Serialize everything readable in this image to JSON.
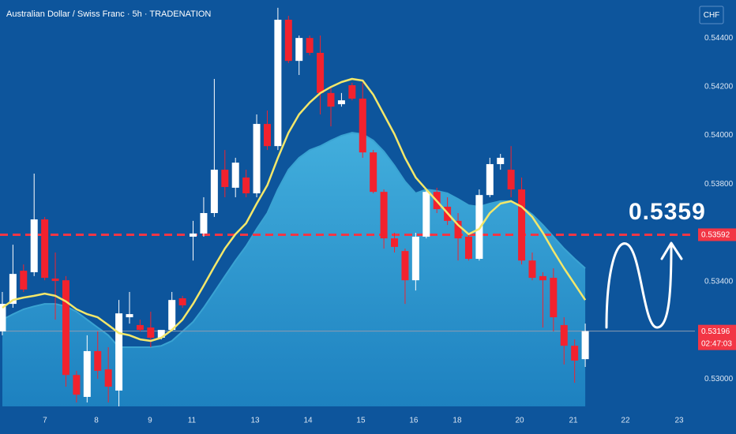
{
  "header": {
    "title": "Australian Dollar / Swiss Franc · 5h · TRADENATION",
    "currency": "CHF"
  },
  "chart_data": {
    "type": "candlestick",
    "up_color": "#ffffff",
    "down_color": "#f2222e",
    "open": [
      0.53195,
      0.53308,
      0.53444,
      0.53438,
      0.53655,
      0.53412,
      0.53405,
      0.53016,
      0.52926,
      0.53114,
      0.53039,
      0.52952,
      0.53253,
      0.53221,
      0.53211,
      0.53169,
      0.53201,
      0.53331,
      0.53584,
      0.53597,
      0.53681,
      0.53859,
      0.53785,
      0.53827,
      0.53762,
      0.54047,
      0.53956,
      0.54475,
      0.54306,
      0.544,
      0.54339,
      0.54174,
      0.54128,
      0.54206,
      0.54151,
      0.5393,
      0.53768,
      0.53577,
      0.53525,
      0.53405,
      0.53584,
      0.53768,
      0.53707,
      0.53649,
      0.53584,
      0.53493,
      0.53755,
      0.53882,
      0.53859,
      0.53778,
      0.53486,
      0.53422,
      0.53415,
      0.53221,
      0.53136,
      0.53081
    ],
    "high": [
      0.53357,
      0.53551,
      0.5347,
      0.53843,
      0.53665,
      0.53519,
      0.53422,
      0.53033,
      0.53179,
      0.53195,
      0.5313,
      0.53324,
      0.53357,
      0.53243,
      0.53276,
      0.53195,
      0.53357,
      0.53341,
      0.53649,
      0.53746,
      0.54232,
      0.5394,
      0.53908,
      0.53859,
      0.54086,
      0.54102,
      0.54524,
      0.54491,
      0.5441,
      0.5441,
      0.5441,
      0.54199,
      0.54174,
      0.54216,
      0.54216,
      0.5394,
      0.53778,
      0.536,
      0.53535,
      0.536,
      0.53778,
      0.53785,
      0.53746,
      0.53681,
      0.536,
      0.53778,
      0.53908,
      0.53924,
      0.53956,
      0.53827,
      0.53519,
      0.53438,
      0.53454,
      0.53253,
      0.53162,
      0.53227
    ],
    "low": [
      0.53179,
      0.53292,
      0.53357,
      0.53422,
      0.53405,
      0.53243,
      0.52968,
      0.52903,
      0.52903,
      0.53,
      0.52903,
      0.52887,
      0.53227,
      0.53195,
      0.5313,
      0.53162,
      0.53195,
      0.53292,
      0.53486,
      0.53584,
      0.53665,
      0.53746,
      0.53746,
      0.53746,
      0.53746,
      0.5394,
      0.5394,
      0.54297,
      0.54248,
      0.54329,
      0.54086,
      0.54037,
      0.54118,
      0.54144,
      0.53908,
      0.53762,
      0.53535,
      0.53519,
      0.53308,
      0.53363,
      0.53577,
      0.53681,
      0.53632,
      0.53486,
      0.53486,
      0.53486,
      0.53746,
      0.53859,
      0.53746,
      0.5347,
      0.53405,
      0.53211,
      0.53195,
      0.53059,
      0.52984,
      0.53049
    ],
    "close": [
      0.53308,
      0.53431,
      0.53367,
      0.53655,
      0.53415,
      0.53402,
      0.53016,
      0.52935,
      0.53114,
      0.53033,
      0.52968,
      0.53269,
      0.53266,
      0.53201,
      0.53169,
      0.53201,
      0.53324,
      0.53302,
      0.53597,
      0.53681,
      0.53859,
      0.53788,
      0.53888,
      0.53762,
      0.54047,
      0.53956,
      0.54475,
      0.54306,
      0.544,
      0.54339,
      0.54174,
      0.54118,
      0.54144,
      0.54151,
      0.5393,
      0.53768,
      0.53577,
      0.53542,
      0.53405,
      0.53584,
      0.53768,
      0.53697,
      0.53649,
      0.53577,
      0.53493,
      0.53755,
      0.53882,
      0.53908,
      0.53778,
      0.53486,
      0.53415,
      0.53405,
      0.53253,
      0.53136,
      0.53075,
      0.53196
    ],
    "moving_average": {
      "color": "#f3e76a",
      "values": [
        0.53292,
        0.53324,
        0.53334,
        0.53341,
        0.5335,
        0.53341,
        0.53318,
        0.53286,
        0.53266,
        0.53253,
        0.53221,
        0.53188,
        0.53179,
        0.53162,
        0.53156,
        0.53169,
        0.53201,
        0.53243,
        0.53308,
        0.53383,
        0.53461,
        0.53535,
        0.53594,
        0.53639,
        0.5372,
        0.53795,
        0.53908,
        0.54011,
        0.54086,
        0.54135,
        0.54174,
        0.54199,
        0.54219,
        0.54232,
        0.54225,
        0.54167,
        0.54086,
        0.54005,
        0.53908,
        0.53827,
        0.53778,
        0.5373,
        0.53681,
        0.53632,
        0.53594,
        0.53616,
        0.53681,
        0.5372,
        0.5373,
        0.53707,
        0.53665,
        0.536,
        0.53525,
        0.53454,
        0.53389,
        0.53324
      ]
    },
    "band": {
      "color": "#3aa3d2",
      "values": [
        0.53243,
        0.53266,
        0.53286,
        0.53298,
        0.53308,
        0.53308,
        0.53298,
        0.53276,
        0.53243,
        0.53211,
        0.53179,
        0.5313,
        0.5313,
        0.5313,
        0.5313,
        0.53136,
        0.53156,
        0.53195,
        0.53234,
        0.53292,
        0.53357,
        0.53422,
        0.53486,
        0.53545,
        0.53616,
        0.53681,
        0.53778,
        0.53859,
        0.53908,
        0.5394,
        0.53956,
        0.53979,
        0.53999,
        0.54011,
        0.54005,
        0.53979,
        0.53934,
        0.53876,
        0.53811,
        0.53762,
        0.53778,
        0.53772,
        0.53762,
        0.53739,
        0.53713,
        0.53707,
        0.5372,
        0.5373,
        0.5373,
        0.53707,
        0.53675,
        0.53632,
        0.53584,
        0.53535,
        0.53493,
        0.53454
      ]
    },
    "levels": [
      {
        "value": 0.53592,
        "color": "#f23645",
        "style": "dashed"
      },
      {
        "value": 0.53196,
        "color": "#8d9bb0",
        "style": "solid"
      }
    ],
    "countdown": "02:47:03",
    "annotation": "0.5359",
    "xlim": [
      -0.22,
      65.35
    ],
    "xticks": [
      {
        "value": 4.02,
        "label": "7"
      },
      {
        "value": 8.87,
        "label": "8"
      },
      {
        "value": 13.93,
        "label": "9"
      },
      {
        "value": 17.88,
        "label": "11"
      },
      {
        "value": 23.85,
        "label": "13"
      },
      {
        "value": 28.84,
        "label": "14"
      },
      {
        "value": 33.83,
        "label": "15"
      },
      {
        "value": 38.82,
        "label": "16"
      },
      {
        "value": 42.92,
        "label": "18"
      },
      {
        "value": 48.81,
        "label": "20"
      },
      {
        "value": 53.88,
        "label": "21"
      },
      {
        "value": 58.79,
        "label": "22"
      },
      {
        "value": 63.86,
        "label": "23"
      }
    ],
    "ylim": [
      0.52887,
      0.54556
    ],
    "yticks": [
      {
        "value": 0.53,
        "label": "0.53000"
      },
      {
        "value": 0.534,
        "label": "0.53400"
      },
      {
        "value": 0.538,
        "label": "0.53800"
      },
      {
        "value": 0.54,
        "label": "0.54000"
      },
      {
        "value": 0.542,
        "label": "0.54200"
      },
      {
        "value": 0.544,
        "label": "0.54400"
      }
    ]
  }
}
